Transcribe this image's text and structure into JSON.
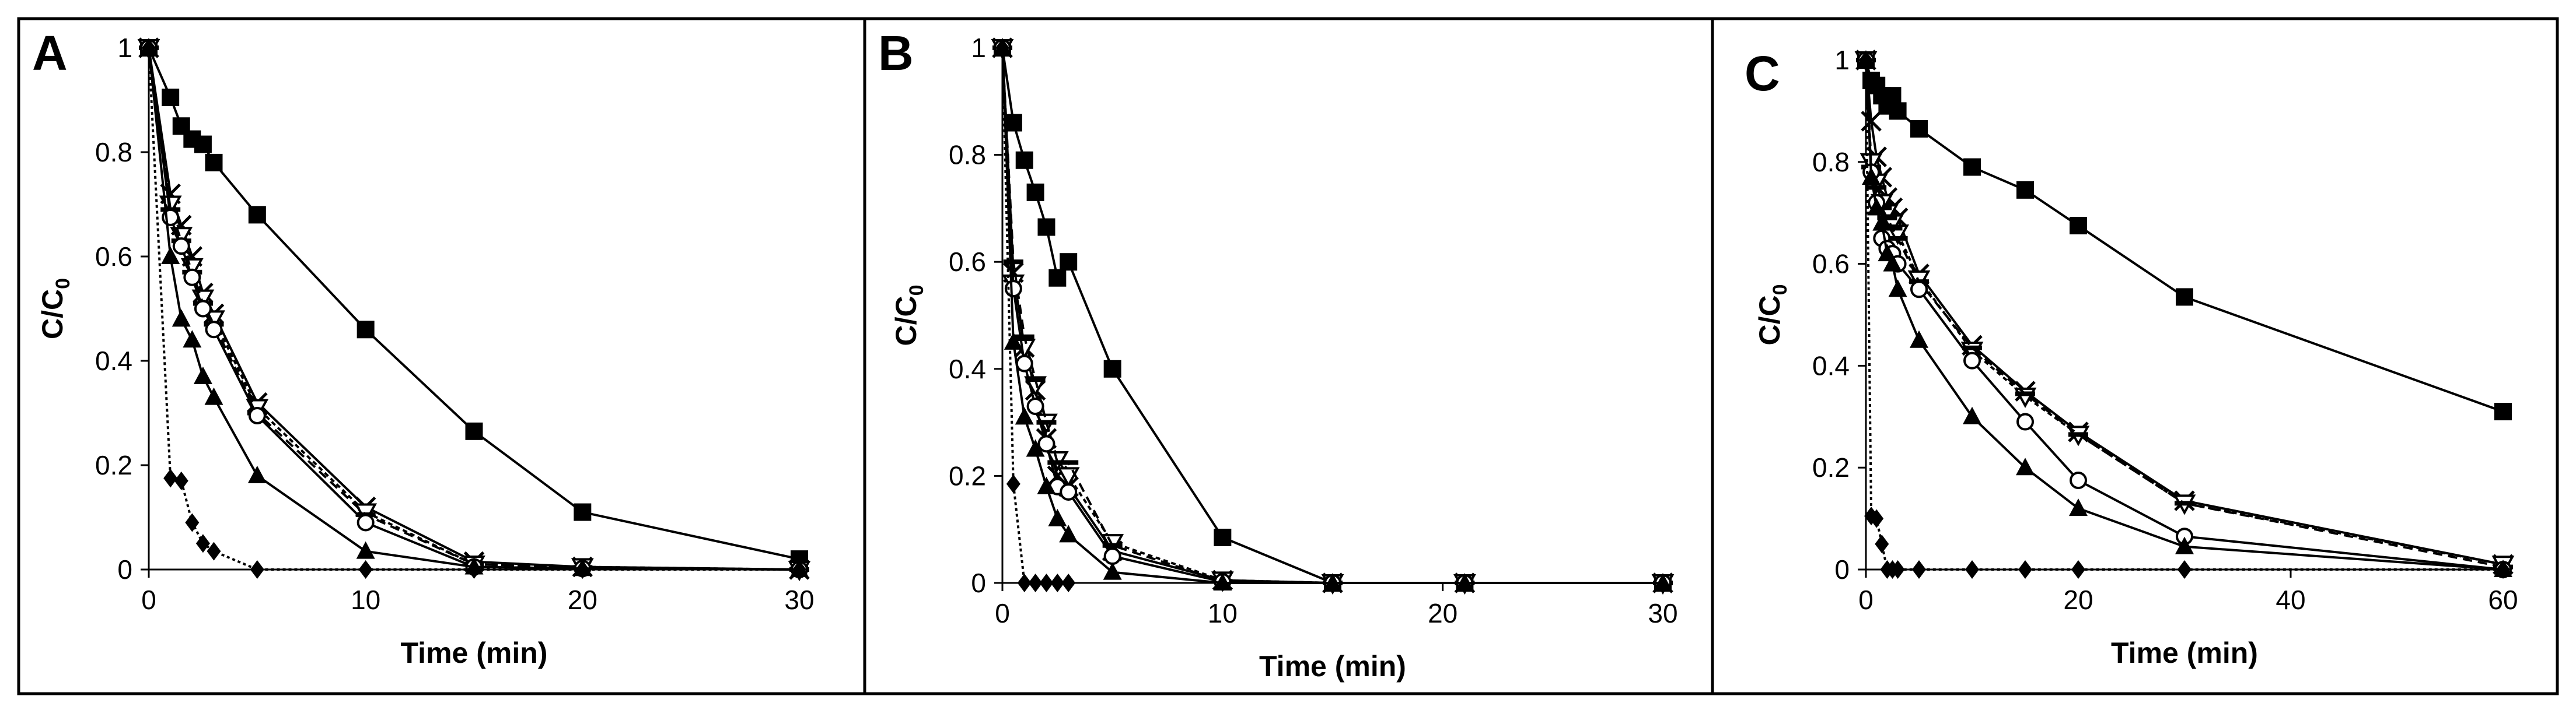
{
  "figure": {
    "panels": [
      "A",
      "B",
      "C"
    ]
  },
  "chart_data": [
    {
      "type": "line",
      "panel_label": "A",
      "xlabel": "Time (min)",
      "ylabel": "C/C0",
      "ylabel_main": "C/C",
      "ylabel_sub": "0",
      "xlim": [
        0,
        30
      ],
      "ylim": [
        0,
        1
      ],
      "xticks": [
        0,
        10,
        20,
        30
      ],
      "yticks": [
        0,
        0.2,
        0.4,
        0.6,
        0.8,
        1
      ],
      "ytick_labels": [
        "0",
        "0.2",
        "0.4",
        "0.6",
        "0.8",
        "1"
      ],
      "grid": false,
      "series": [
        {
          "name": "filled-square",
          "marker": "square",
          "fill": "#000000",
          "dash": "none",
          "x": [
            0,
            1,
            1.5,
            2,
            2.5,
            3,
            5,
            10,
            15,
            20,
            30
          ],
          "y": [
            1,
            0.905,
            0.85,
            0.825,
            0.815,
            0.78,
            0.68,
            0.46,
            0.265,
            0.11,
            0.02
          ]
        },
        {
          "name": "cross",
          "marker": "cross",
          "fill": "#000000",
          "dash": "none",
          "x": [
            0,
            1,
            1.5,
            2,
            2.5,
            3,
            5,
            10,
            15,
            20,
            30
          ],
          "y": [
            1,
            0.72,
            0.66,
            0.6,
            0.53,
            0.49,
            0.32,
            0.12,
            0.015,
            0.005,
            0
          ]
        },
        {
          "name": "open-triangle",
          "marker": "triangle-down",
          "fill": "#ffffff",
          "dash": "8,6",
          "x": [
            0,
            1,
            1.5,
            2,
            2.5,
            3,
            5,
            10,
            15,
            20,
            30
          ],
          "y": [
            1,
            0.7,
            0.64,
            0.58,
            0.52,
            0.48,
            0.31,
            0.11,
            0.01,
            0.005,
            0
          ]
        },
        {
          "name": "dash-mark",
          "marker": "dash",
          "fill": "#000000",
          "dash": "16,10",
          "x": [
            0,
            1,
            1.5,
            2,
            2.5,
            3,
            5,
            10,
            15,
            20,
            30
          ],
          "y": [
            1,
            0.69,
            0.63,
            0.57,
            0.51,
            0.47,
            0.3,
            0.105,
            0.01,
            0.004,
            0
          ]
        },
        {
          "name": "open-circle",
          "marker": "circle",
          "fill": "#ffffff",
          "dash": "none",
          "x": [
            0,
            1,
            1.5,
            2,
            2.5,
            3,
            5,
            10,
            15,
            20,
            30
          ],
          "y": [
            1,
            0.675,
            0.62,
            0.56,
            0.5,
            0.46,
            0.295,
            0.09,
            0.005,
            0.002,
            0
          ]
        },
        {
          "name": "filled-triangle",
          "marker": "triangle",
          "fill": "#000000",
          "dash": "none",
          "x": [
            0,
            1,
            1.5,
            2,
            2.5,
            3,
            5,
            10,
            15,
            20,
            30
          ],
          "y": [
            1,
            0.6,
            0.48,
            0.44,
            0.37,
            0.33,
            0.18,
            0.035,
            0.005,
            0.002,
            0
          ]
        },
        {
          "name": "filled-diamond",
          "marker": "diamond",
          "fill": "#000000",
          "dash": "5,5",
          "x": [
            0,
            1,
            1.5,
            2,
            2.5,
            3,
            5,
            10,
            15,
            20,
            30
          ],
          "y": [
            1,
            0.175,
            0.17,
            0.09,
            0.05,
            0.035,
            0,
            0,
            0,
            0,
            0
          ]
        }
      ]
    },
    {
      "type": "line",
      "panel_label": "B",
      "xlabel": "Time (min)",
      "ylabel": "C/C0",
      "ylabel_main": "C/C",
      "ylabel_sub": "0",
      "xlim": [
        0,
        30
      ],
      "ylim": [
        0,
        1
      ],
      "xticks": [
        0,
        10,
        20,
        30
      ],
      "yticks": [
        0,
        0.2,
        0.4,
        0.6,
        0.8,
        1
      ],
      "ytick_labels": [
        "0",
        "0.2",
        "0.4",
        "0.6",
        "0.8",
        "1"
      ],
      "grid": false,
      "series": [
        {
          "name": "filled-square",
          "marker": "square",
          "fill": "#000000",
          "dash": "none",
          "x": [
            0,
            0.5,
            1,
            1.5,
            2,
            2.5,
            3,
            5,
            10,
            15,
            21,
            30
          ],
          "y": [
            1,
            0.86,
            0.79,
            0.73,
            0.665,
            0.57,
            0.6,
            0.4,
            0.085,
            0,
            0,
            0
          ]
        },
        {
          "name": "cross",
          "marker": "cross",
          "fill": "#000000",
          "dash": "none",
          "x": [
            0,
            0.5,
            1,
            1.5,
            2,
            2.5,
            3,
            5,
            10,
            15,
            21,
            30
          ],
          "y": [
            1,
            0.58,
            0.44,
            0.36,
            0.27,
            0.2,
            0.18,
            0.06,
            0.005,
            0,
            0,
            0
          ]
        },
        {
          "name": "open-triangle",
          "marker": "triangle-down",
          "fill": "#ffffff",
          "dash": "8,6",
          "x": [
            0,
            0.5,
            1,
            1.5,
            2,
            2.5,
            3,
            5,
            10,
            15,
            21,
            30
          ],
          "y": [
            1,
            0.56,
            0.44,
            0.37,
            0.3,
            0.23,
            0.2,
            0.075,
            0.005,
            0,
            0,
            0
          ]
        },
        {
          "name": "dash-mark",
          "marker": "dash",
          "fill": "#000000",
          "dash": "16,10",
          "x": [
            0,
            0.5,
            1,
            1.5,
            2,
            2.5,
            3,
            5,
            10,
            15,
            21,
            30
          ],
          "y": [
            1,
            0.6,
            0.46,
            0.38,
            0.3,
            0.225,
            0.225,
            0.07,
            0.003,
            0,
            0,
            0
          ]
        },
        {
          "name": "open-circle",
          "marker": "circle",
          "fill": "#ffffff",
          "dash": "none",
          "x": [
            0,
            0.5,
            1,
            1.5,
            2,
            2.5,
            3,
            5,
            10,
            15,
            21,
            30
          ],
          "y": [
            1,
            0.55,
            0.41,
            0.33,
            0.26,
            0.18,
            0.17,
            0.05,
            0.002,
            0,
            0,
            0
          ]
        },
        {
          "name": "filled-triangle",
          "marker": "triangle",
          "fill": "#000000",
          "dash": "none",
          "x": [
            0,
            0.5,
            1,
            1.5,
            2,
            2.5,
            3,
            5,
            10,
            15,
            21,
            30
          ],
          "y": [
            1,
            0.45,
            0.31,
            0.25,
            0.18,
            0.12,
            0.09,
            0.02,
            0,
            0,
            0,
            0
          ]
        },
        {
          "name": "filled-diamond",
          "marker": "diamond",
          "fill": "#000000",
          "dash": "5,5",
          "x": [
            0,
            0.5,
            1,
            1.5,
            2,
            2.5,
            3
          ],
          "y": [
            1,
            0.185,
            0,
            0,
            0,
            0,
            0
          ]
        }
      ]
    },
    {
      "type": "line",
      "panel_label": "C",
      "xlabel": "Time (min)",
      "ylabel": "C/C0",
      "ylabel_main": "C/C",
      "ylabel_sub": "0",
      "xlim": [
        0,
        60
      ],
      "ylim": [
        0,
        1
      ],
      "xticks": [
        0,
        20,
        40,
        60
      ],
      "yticks": [
        0,
        0.2,
        0.4,
        0.6,
        0.8,
        1
      ],
      "ytick_labels": [
        "0",
        "0.2",
        "0.4",
        "0.6",
        "0.8",
        "1"
      ],
      "grid": false,
      "series": [
        {
          "name": "filled-square",
          "marker": "square",
          "fill": "#000000",
          "dash": "none",
          "x": [
            0,
            0.5,
            1,
            1.5,
            2,
            2.5,
            3,
            5,
            10,
            15,
            20,
            30,
            60
          ],
          "y": [
            1,
            0.96,
            0.95,
            0.93,
            0.91,
            0.93,
            0.9,
            0.865,
            0.79,
            0.745,
            0.675,
            0.535,
            0.31
          ]
        },
        {
          "name": "cross",
          "marker": "cross",
          "fill": "#000000",
          "dash": "none",
          "x": [
            0,
            0.5,
            1,
            1.5,
            2,
            2.5,
            3,
            5,
            10,
            15,
            20,
            30,
            60
          ],
          "y": [
            1,
            0.88,
            0.81,
            0.77,
            0.73,
            0.71,
            0.69,
            0.58,
            0.44,
            0.35,
            0.27,
            0.135,
            0.01
          ]
        },
        {
          "name": "open-triangle",
          "marker": "triangle-down",
          "fill": "#ffffff",
          "dash": "8,6",
          "x": [
            0,
            0.5,
            1,
            1.5,
            2,
            2.5,
            3,
            5,
            10,
            15,
            20,
            30,
            60
          ],
          "y": [
            1,
            0.8,
            0.76,
            0.72,
            0.7,
            0.68,
            0.66,
            0.57,
            0.43,
            0.34,
            0.265,
            0.13,
            0.01
          ]
        },
        {
          "name": "dash-mark",
          "marker": "dash",
          "fill": "#000000",
          "dash": "16,10",
          "x": [
            0,
            0.5,
            1,
            1.5,
            2,
            2.5,
            3,
            5,
            10,
            15,
            20,
            30,
            60
          ],
          "y": [
            1,
            0.79,
            0.75,
            0.71,
            0.69,
            0.67,
            0.65,
            0.565,
            0.435,
            0.345,
            0.265,
            0.13,
            0.005
          ]
        },
        {
          "name": "open-circle",
          "marker": "circle",
          "fill": "#ffffff",
          "dash": "none",
          "x": [
            0,
            0.5,
            1,
            1.5,
            2,
            2.5,
            3,
            5,
            10,
            15,
            20,
            30,
            60
          ],
          "y": [
            1,
            0.78,
            0.72,
            0.65,
            0.63,
            0.62,
            0.6,
            0.55,
            0.41,
            0.29,
            0.175,
            0.065,
            0
          ]
        },
        {
          "name": "filled-triangle",
          "marker": "triangle",
          "fill": "#000000",
          "dash": "none",
          "x": [
            0,
            0.5,
            1,
            1.5,
            2,
            2.5,
            3,
            5,
            10,
            15,
            20,
            30,
            60
          ],
          "y": [
            1,
            0.77,
            0.71,
            0.68,
            0.62,
            0.6,
            0.55,
            0.45,
            0.3,
            0.2,
            0.12,
            0.045,
            0
          ]
        },
        {
          "name": "filled-diamond",
          "marker": "diamond",
          "fill": "#000000",
          "dash": "5,5",
          "x": [
            0,
            0.5,
            1,
            1.5,
            2,
            2.5,
            3,
            5,
            10,
            15,
            20,
            30,
            60
          ],
          "y": [
            1,
            0.105,
            0.1,
            0.05,
            0,
            0,
            0,
            0,
            0,
            0,
            0,
            0,
            0
          ]
        }
      ]
    }
  ]
}
